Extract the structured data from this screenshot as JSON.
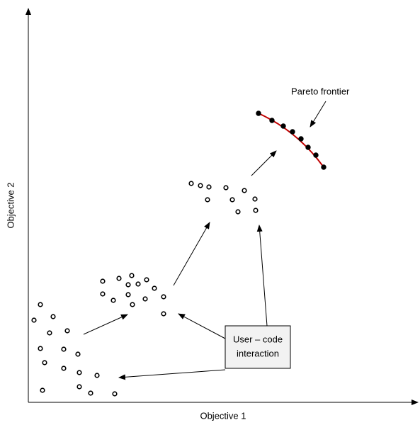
{
  "axes": {
    "x_label": "Objective 1",
    "y_label": "Objective 2"
  },
  "annotations": {
    "pareto": "Pareto frontier",
    "interaction": [
      "User – code",
      "interaction"
    ]
  }
}
